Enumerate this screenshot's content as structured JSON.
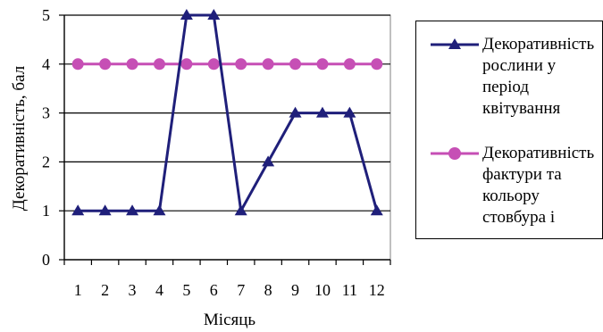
{
  "chart_data": {
    "type": "line",
    "categories": [
      "1",
      "2",
      "3",
      "4",
      "5",
      "6",
      "7",
      "8",
      "9",
      "10",
      "11",
      "12"
    ],
    "series": [
      {
        "name": "Декоративність\nрослини у\nперіод\nквітування",
        "values": [
          1,
          1,
          1,
          1,
          5,
          5,
          1,
          2,
          3,
          3,
          3,
          1
        ],
        "color": "#1f1f7a",
        "marker": "triangle"
      },
      {
        "name": "Декоративність\nфактури та\nкольору\nстовбура і",
        "values": [
          4,
          4,
          4,
          4,
          4,
          4,
          4,
          4,
          4,
          4,
          4,
          4
        ],
        "color": "#c64fb5",
        "marker": "circle"
      }
    ],
    "xlabel": "Місяць",
    "ylabel": "Декоративність, бал",
    "ylim": [
      0,
      5
    ],
    "yticks": [
      "0",
      "1",
      "2",
      "3",
      "4",
      "5"
    ],
    "grid": true,
    "legend_position": "right"
  }
}
